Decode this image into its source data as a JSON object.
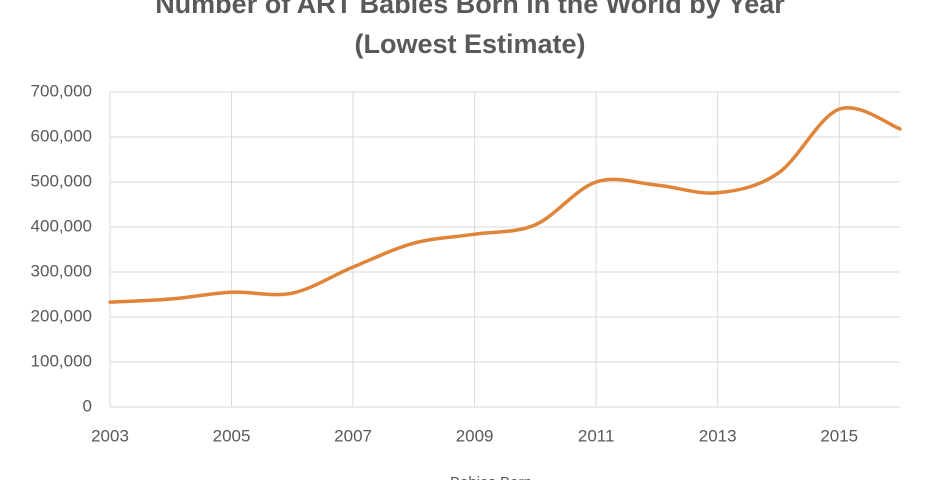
{
  "chart_data": {
    "type": "line",
    "title": "Number of ART Babies Born in the World by Year",
    "subtitle": "(Lowest Estimate)",
    "x": [
      2003,
      2004,
      2005,
      2006,
      2007,
      2008,
      2009,
      2010,
      2011,
      2012,
      2013,
      2014,
      2015,
      2016
    ],
    "series": [
      {
        "name": "Babies Born",
        "color": "#e0843a",
        "values": [
          233000,
          240000,
          255000,
          253000,
          311000,
          364000,
          384000,
          405000,
          500000,
          493000,
          476000,
          520000,
          662000,
          618000
        ]
      }
    ],
    "xlim": [
      2003,
      2016
    ],
    "xticks": [
      2003,
      2005,
      2007,
      2009,
      2011,
      2013,
      2015
    ],
    "ylim": [
      0,
      700000
    ],
    "yticks": [
      0,
      {
        "value": 100000,
        "label": "100,000"
      },
      {
        "value": 200000,
        "label": "200,000"
      },
      {
        "value": 300000,
        "label": "300,000"
      },
      {
        "value": 400000,
        "label": "400,000"
      },
      {
        "value": 500000,
        "label": "500,000"
      },
      {
        "value": 600000,
        "label": "600,000"
      },
      {
        "value": 700000,
        "label": "700,000"
      }
    ],
    "grid": true,
    "legend": "bottom"
  }
}
